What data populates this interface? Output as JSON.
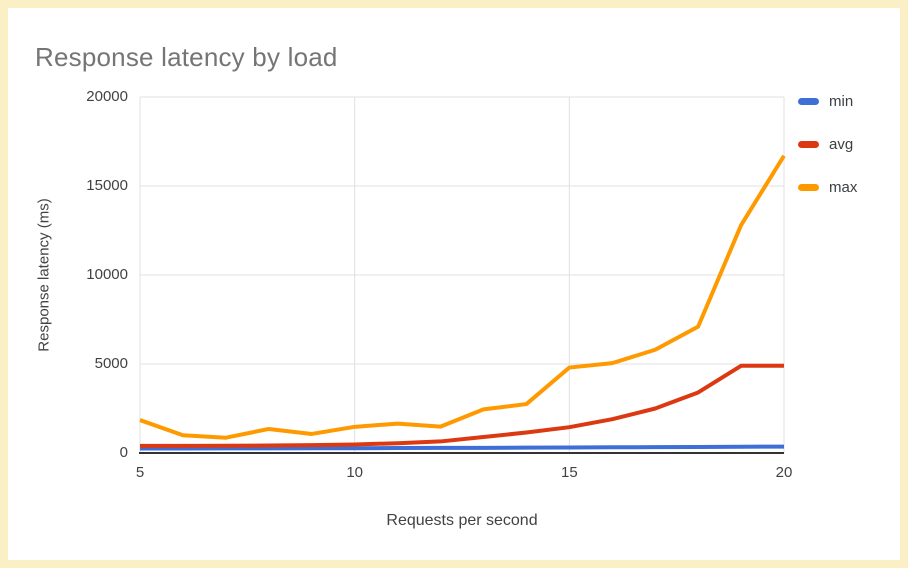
{
  "chart_data": {
    "type": "line",
    "title": "Response latency by load",
    "xlabel": "Requests per second",
    "ylabel": "Response latency (ms)",
    "x": [
      5,
      6,
      7,
      8,
      9,
      10,
      11,
      12,
      13,
      14,
      15,
      16,
      17,
      18,
      19,
      20
    ],
    "series": [
      {
        "name": "min",
        "color": "#3d6fd6",
        "values": [
          250,
          255,
          260,
          260,
          265,
          270,
          280,
          285,
          290,
          300,
          310,
          320,
          330,
          340,
          350,
          360
        ]
      },
      {
        "name": "avg",
        "color": "#dc3912",
        "values": [
          400,
          400,
          410,
          420,
          440,
          480,
          550,
          650,
          900,
          1150,
          1450,
          1900,
          2500,
          3400,
          4900,
          4900
        ]
      },
      {
        "name": "max",
        "color": "#ff9900",
        "values": [
          1850,
          1000,
          860,
          1350,
          1070,
          1470,
          1650,
          1480,
          2450,
          2750,
          4800,
          5050,
          5800,
          7100,
          12800,
          16700
        ]
      }
    ],
    "xlim": [
      5,
      20
    ],
    "ylim": [
      0,
      20000
    ],
    "x_ticks": [
      5,
      10,
      15,
      20
    ],
    "y_ticks": [
      0,
      5000,
      10000,
      15000,
      20000
    ],
    "grid": true,
    "legend_position": "right",
    "colors": {
      "grid_line": "#e0e0e0",
      "axis_line": "#333333",
      "title_text": "#757575",
      "tick_text": "#424242",
      "card_border": "#faefc5"
    }
  }
}
